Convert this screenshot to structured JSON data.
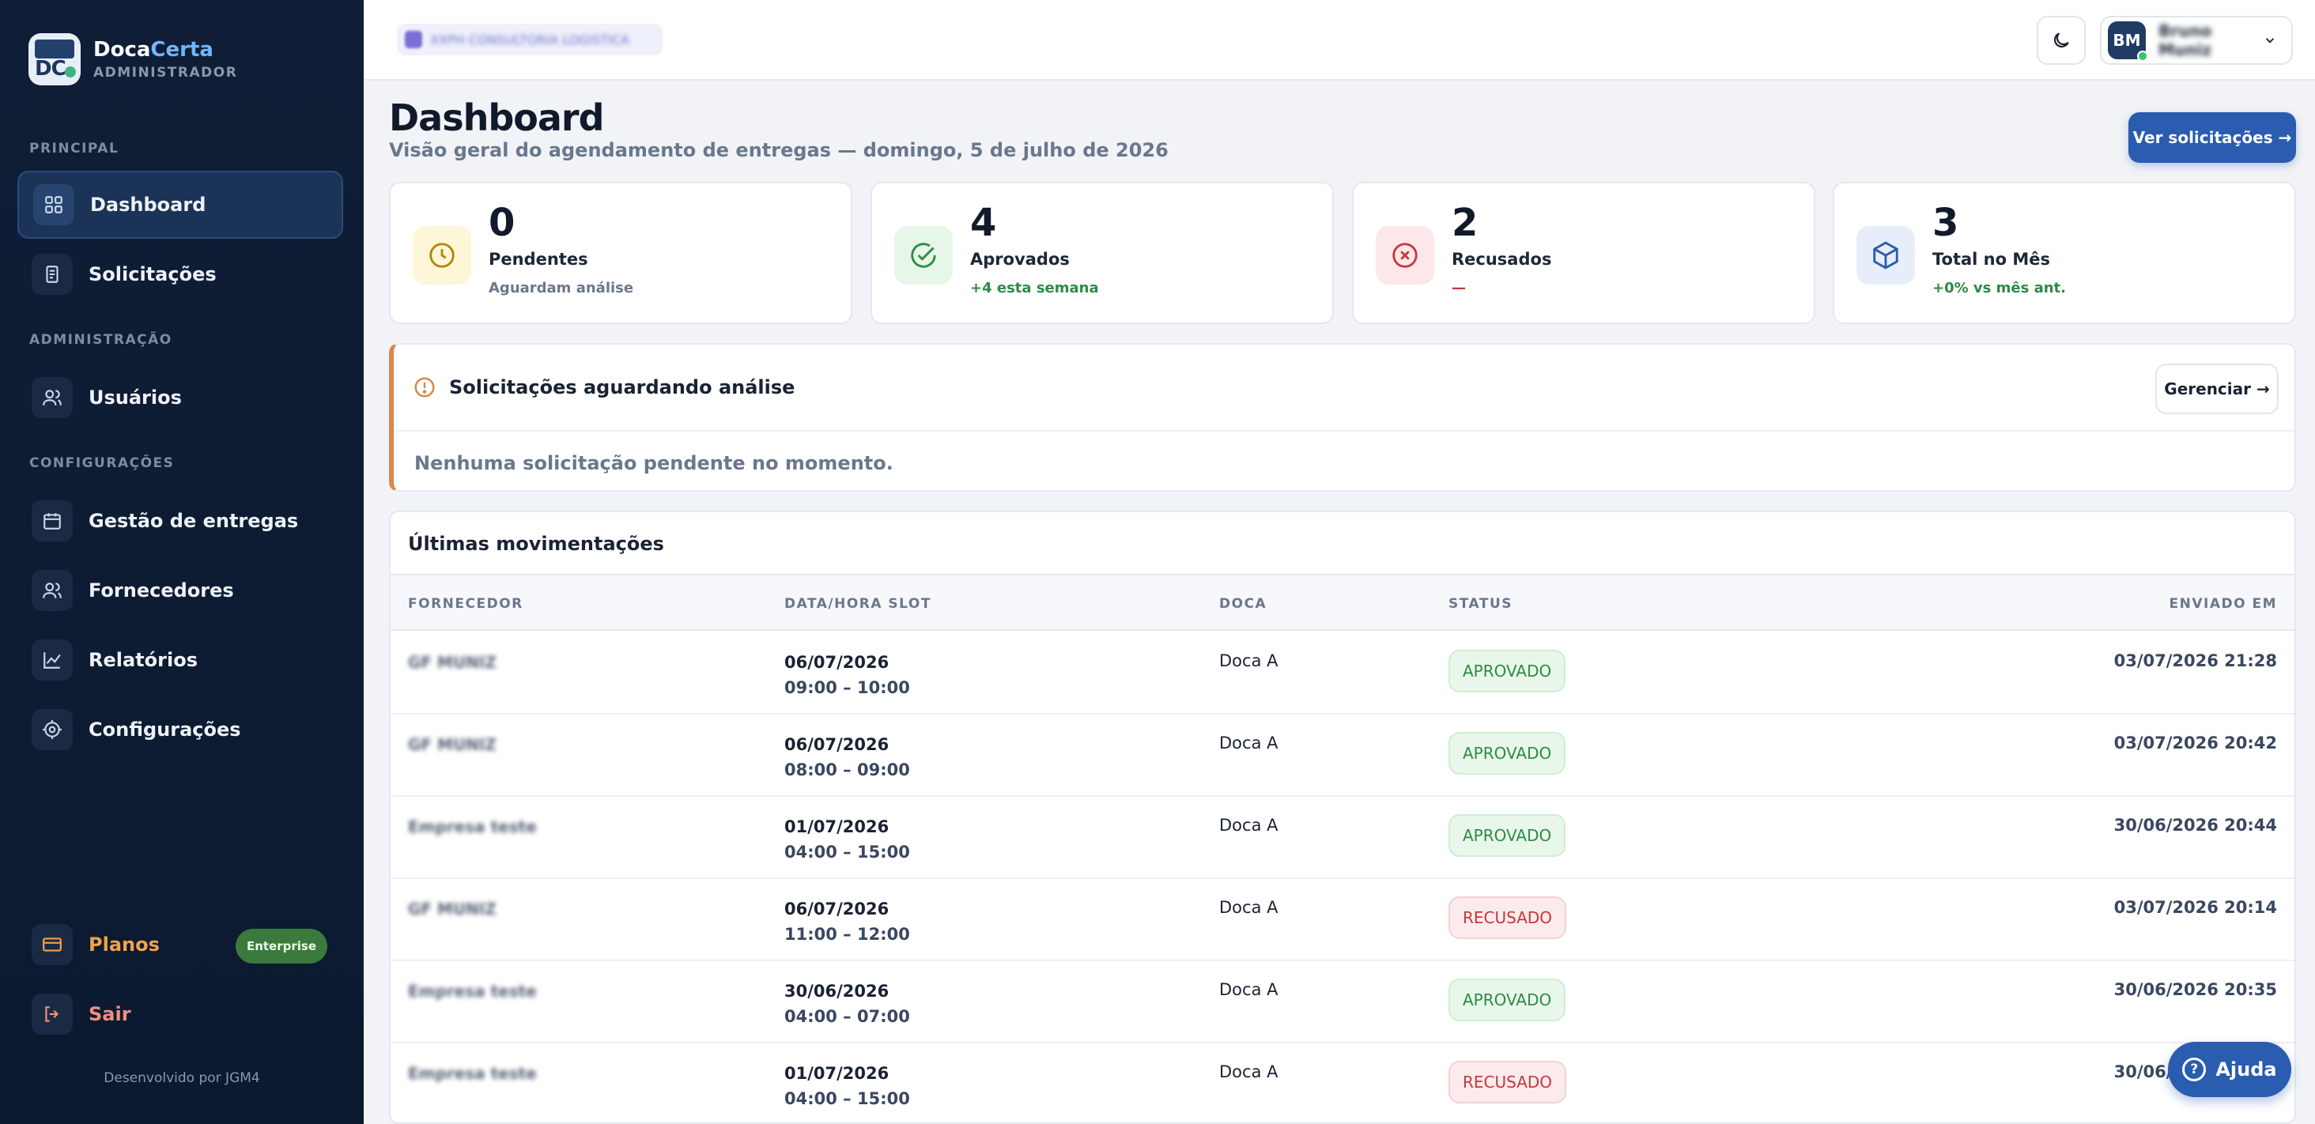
{
  "brand": {
    "name_part1": "Doca",
    "name_part2": "Certa",
    "role": "ADMINISTRADOR"
  },
  "sidebar": {
    "sections": {
      "principal": "PRINCIPAL",
      "admin": "ADMINISTRAÇÃO",
      "config": "CONFIGURAÇÕES"
    },
    "items": [
      {
        "label": "Dashboard",
        "icon": "grid-icon"
      },
      {
        "label": "Solicitações",
        "icon": "document-icon"
      },
      {
        "label": "Usuários",
        "icon": "users-icon"
      },
      {
        "label": "Gestão de entregas",
        "icon": "calendar-icon"
      },
      {
        "label": "Fornecedores",
        "icon": "suppliers-icon"
      },
      {
        "label": "Relatórios",
        "icon": "chart-icon"
      },
      {
        "label": "Configurações",
        "icon": "gear-icon"
      }
    ],
    "plans": {
      "label": "Planos",
      "badge": "Enterprise"
    },
    "logout": "Sair",
    "credit": "Desenvolvido por JGM4"
  },
  "topbar": {
    "tenant": "XXPH CONSULTORIA LOGISTICA",
    "user_initials": "BM",
    "user_name": "Bruno Muniz"
  },
  "header": {
    "title": "Dashboard",
    "subtitle": "Visão geral do agendamento de entregas — domingo, 5 de julho de 2026",
    "cta": "Ver solicitações →"
  },
  "stats": [
    {
      "value": "0",
      "label": "Pendentes",
      "note": "Aguardam análise",
      "color": "#d9a400"
    },
    {
      "value": "4",
      "label": "Aprovados",
      "note": "+4 esta semana",
      "color": "#2f8a46"
    },
    {
      "value": "2",
      "label": "Recusados",
      "note": "—",
      "color": "#c6373f"
    },
    {
      "value": "3",
      "label": "Total no Mês",
      "note": "+0% vs mês ant.",
      "color": "#2a5cb0"
    }
  ],
  "pending": {
    "title": "Solicitações aguardando análise",
    "manage": "Gerenciar →",
    "empty": "Nenhuma solicitação pendente no momento."
  },
  "moves": {
    "title": "Últimas movimentações",
    "columns": [
      "FORNECEDOR",
      "DATA/HORA SLOT",
      "DOCA",
      "STATUS",
      "ENVIADO EM"
    ],
    "rows": [
      {
        "supplier": "GF MUNIZ",
        "date": "06/07/2026",
        "time": "09:00 – 10:00",
        "dock": "Doca A",
        "status": "APROVADO",
        "sent": "03/07/2026 21:28"
      },
      {
        "supplier": "GF MUNIZ",
        "date": "06/07/2026",
        "time": "08:00 – 09:00",
        "dock": "Doca A",
        "status": "APROVADO",
        "sent": "03/07/2026 20:42"
      },
      {
        "supplier": "Empresa teste",
        "date": "01/07/2026",
        "time": "04:00 – 15:00",
        "dock": "Doca A",
        "status": "APROVADO",
        "sent": "30/06/2026 20:44"
      },
      {
        "supplier": "GF MUNIZ",
        "date": "06/07/2026",
        "time": "11:00 – 12:00",
        "dock": "Doca A",
        "status": "RECUSADO",
        "sent": "03/07/2026 20:14"
      },
      {
        "supplier": "Empresa teste",
        "date": "30/06/2026",
        "time": "04:00 – 07:00",
        "dock": "Doca A",
        "status": "APROVADO",
        "sent": "30/06/2026 20:35"
      },
      {
        "supplier": "Empresa teste",
        "date": "01/07/2026",
        "time": "04:00 – 15:00",
        "dock": "Doca A",
        "status": "RECUSADO",
        "sent": "30/06/2026 20:34"
      }
    ]
  },
  "help": "Ajuda"
}
